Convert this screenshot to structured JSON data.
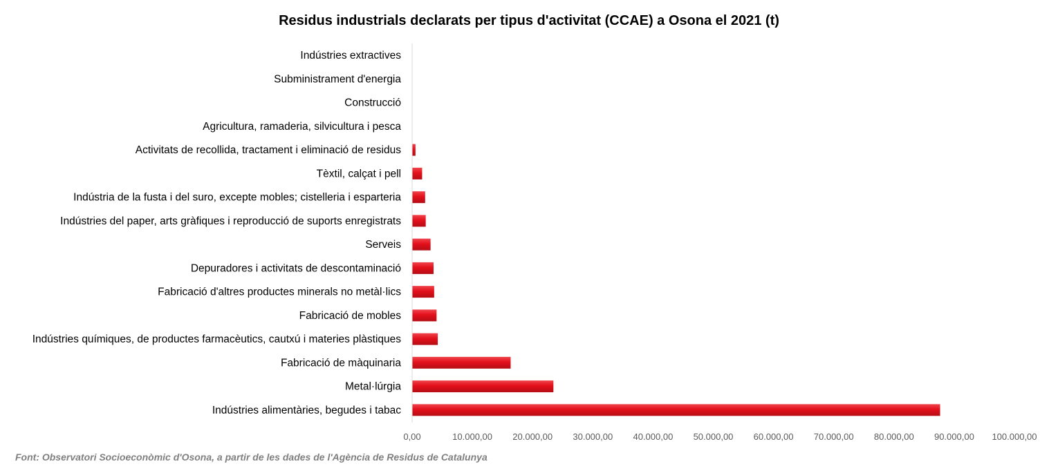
{
  "chart_data": {
    "type": "bar",
    "orientation": "horizontal",
    "title": "Residus industrials declarats per tipus d'activitat (CCAE) a Osona el 2021 (t)",
    "categories": [
      "Indústries extractives",
      "Subministrament d'energia",
      "Construcció",
      "Agricultura, ramaderia, silvicultura i pesca",
      "Activitats de recollida, tractament i eliminació de residus",
      "Tèxtil, calçat i pell",
      "Indústria de la fusta i del suro, excepte mobles; cistelleria i esparteria",
      "Indústries del paper, arts gràfiques i reproducció de suports enregistrats",
      "Serveis",
      "Depuradores i activitats de descontaminació",
      "Fabricació d'altres productes minerals no metàl·lics",
      "Fabricació de mobles",
      "Indústries químiques, de productes farmacèutics, cautxú i materies plàstiques",
      "Fabricació de màquinaria",
      "Metal·lúrgia",
      "Indústries alimentàries, begudes i tabac"
    ],
    "values": [
      0,
      0,
      0,
      0,
      500,
      1600,
      2100,
      2200,
      3000,
      3500,
      3600,
      4000,
      4200,
      16300,
      23400,
      87600
    ],
    "xlim": [
      0,
      100000
    ],
    "xticks": [
      0,
      10000,
      20000,
      30000,
      40000,
      50000,
      60000,
      70000,
      80000,
      90000,
      100000
    ],
    "xtick_labels": [
      "0,00",
      "10.000,00",
      "20.000,00",
      "30.000,00",
      "40.000,00",
      "50.000,00",
      "60.000,00",
      "70.000,00",
      "80.000,00",
      "90.000,00",
      "100.000,00"
    ],
    "grid": false,
    "legend": "none",
    "bar_color": "#e3101b"
  },
  "source_note": "Font: Observatori Socioeconòmic d'Osona, a partir de les dades de l'Agència de Residus de Catalunya"
}
